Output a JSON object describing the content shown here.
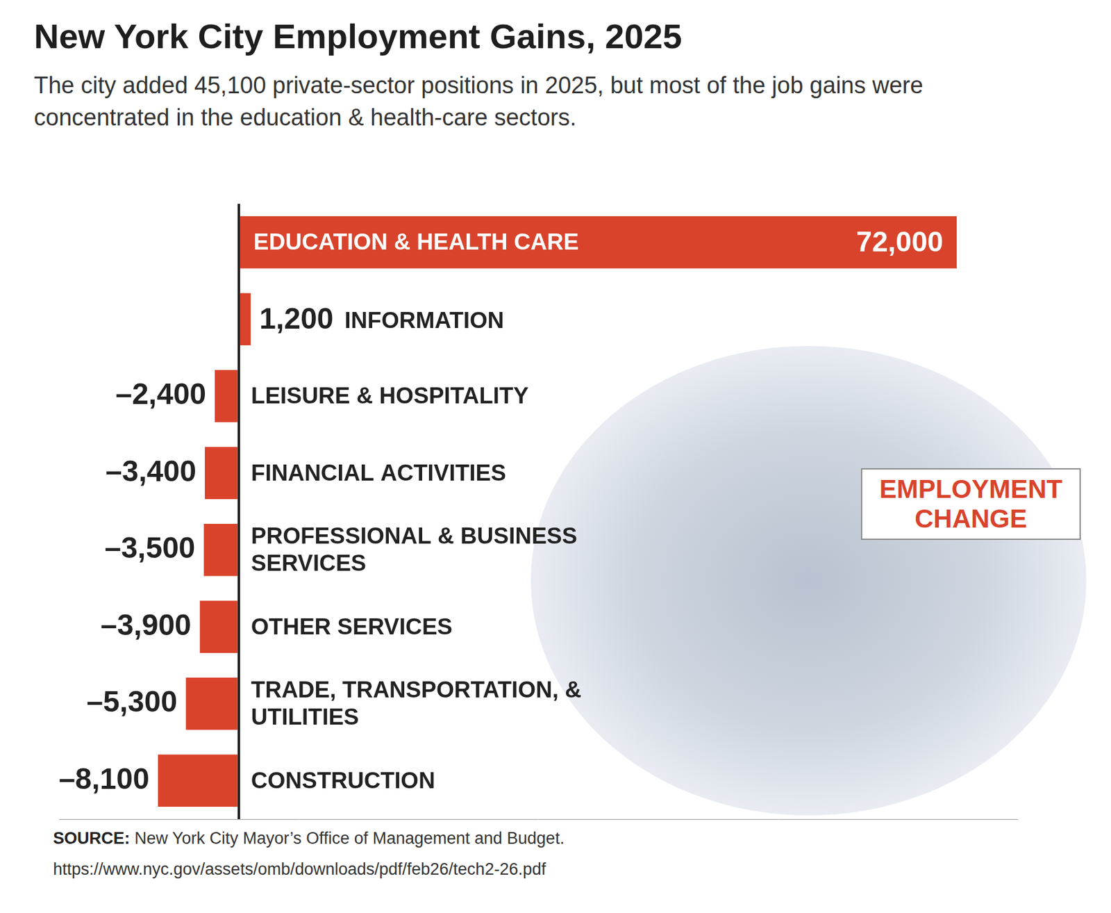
{
  "chart_data": {
    "type": "bar",
    "orientation": "horizontal",
    "title": "New York City Employment Gains, 2025",
    "subtitle": "The city added 45,100 private-sector positions in 2025, but most of the job gains were concentrated in the education & health-care sectors.",
    "xlabel": "EMPLOYMENT CHANGE",
    "categories": [
      "EDUCATION & HEALTH CARE",
      "INFORMATION",
      "LEISURE & HOSPITALITY",
      "FINANCIAL ACTIVITIES",
      "PROFESSIONAL & BUSINESS SERVICES",
      "OTHER SERVICES",
      "TRADE, TRANSPORTATION, & UTILITIES",
      "CONSTRUCTION"
    ],
    "values": [
      72000,
      1200,
      -2400,
      -3400,
      -3500,
      -3900,
      -5300,
      -8100
    ],
    "value_labels": [
      "72,000",
      "1,200",
      "–2,400",
      "–3,400",
      "–3,500",
      "–3,900",
      "–5,300",
      "–8,100"
    ],
    "color": "#d9432b",
    "xlim": [
      -18000,
      78000
    ],
    "xticks": [
      0
    ],
    "grid": true,
    "tick_labels": false,
    "data_labels": true,
    "source_label": "SOURCE:",
    "source": "New York City Mayor’s Office of Management and Budget.",
    "source_url": "https://www.nyc.gov/assets/omb/downloads/pdf/feb26/tech2-26.pdf"
  }
}
